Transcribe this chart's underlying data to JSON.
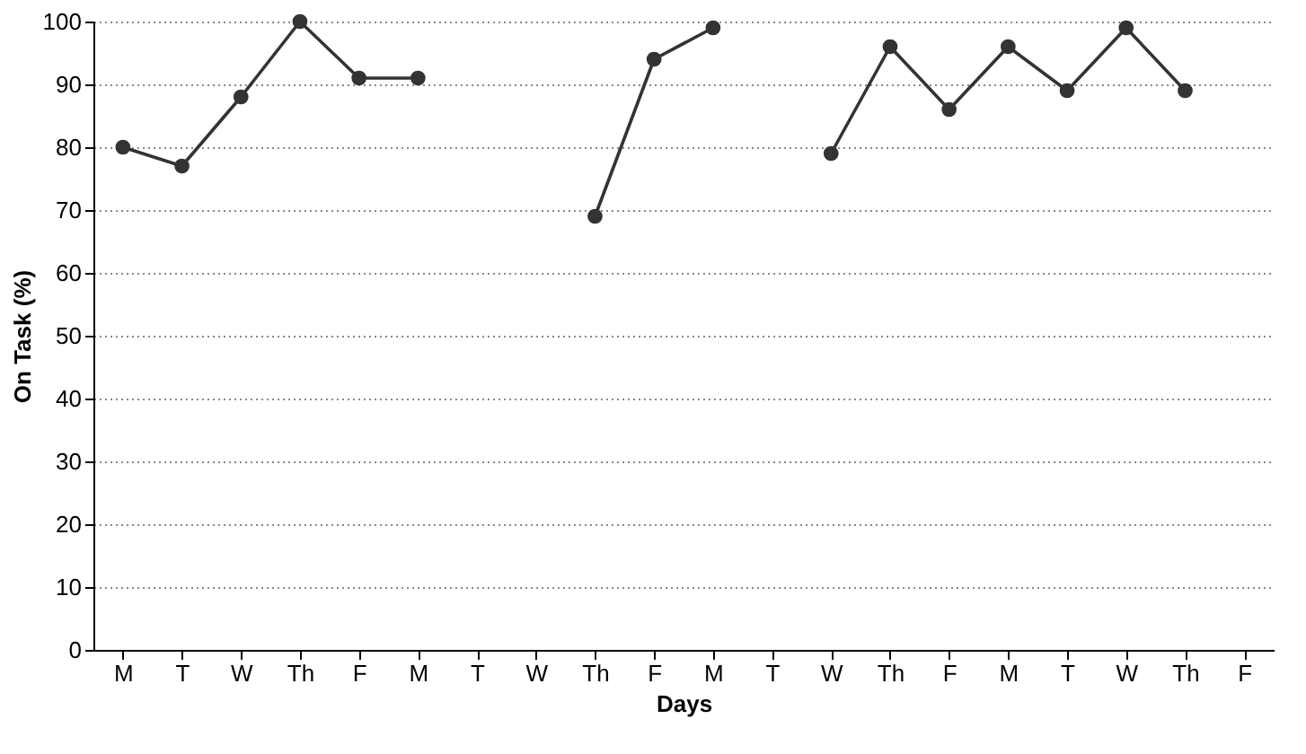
{
  "chart_data": {
    "type": "line",
    "xlabel": "Days",
    "ylabel": "On Task (%)",
    "categories": [
      "M",
      "T",
      "W",
      "Th",
      "F",
      "M",
      "T",
      "W",
      "Th",
      "F",
      "M",
      "T",
      "W",
      "Th",
      "F",
      "M",
      "T",
      "W",
      "Th",
      "F"
    ],
    "series": [
      {
        "color": "#333333",
        "values": [
          80,
          77,
          88,
          100,
          91,
          91,
          null,
          null,
          69,
          94,
          99,
          null,
          79,
          96,
          86,
          96,
          89,
          99,
          89,
          null
        ]
      }
    ],
    "ylim": [
      0,
      100
    ],
    "yticks": [
      0,
      10,
      20,
      30,
      40,
      50,
      60,
      70,
      80,
      90,
      100
    ],
    "grid": "y",
    "marker": "circle",
    "line_style": "solid"
  }
}
